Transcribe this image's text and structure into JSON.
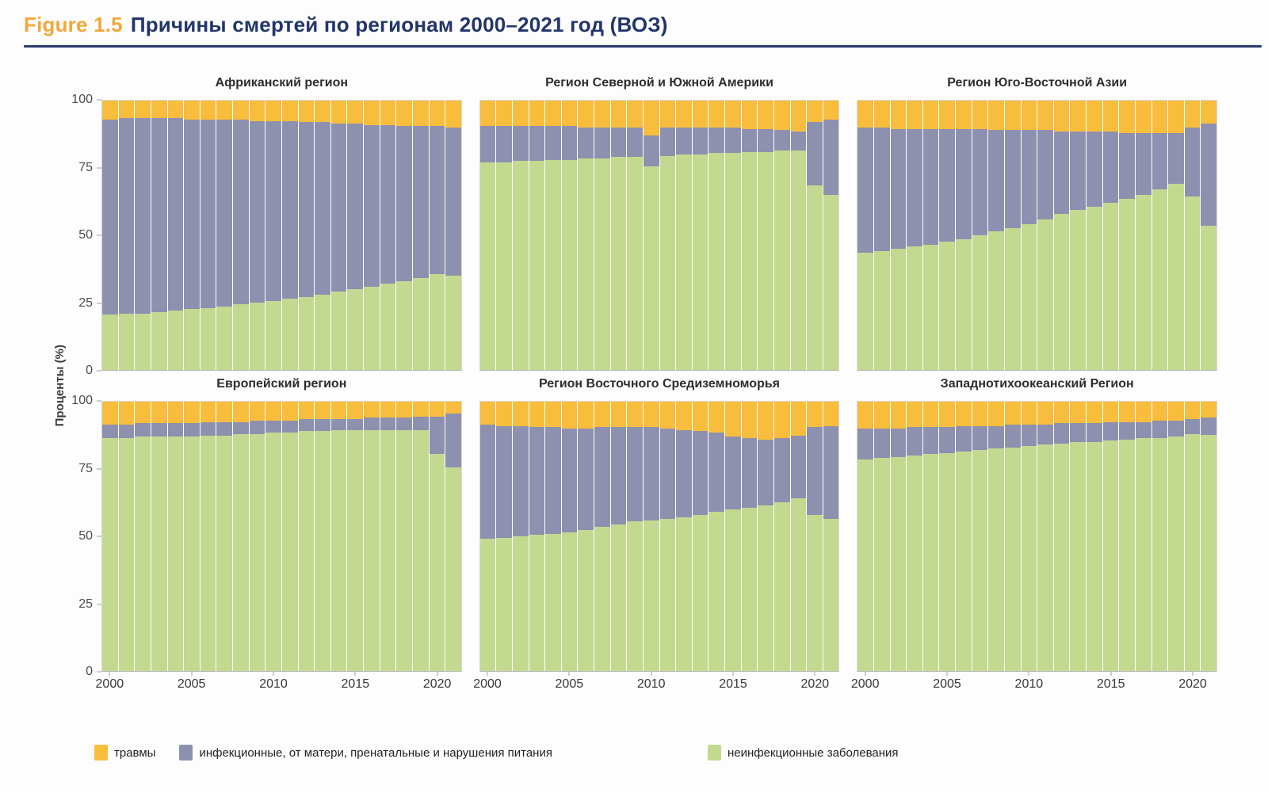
{
  "header": {
    "figure_label": "Figure 1.5",
    "title": "Причины смертей по регионам 2000–2021 год (ВОЗ)"
  },
  "legend": {
    "items": [
      {
        "key": "injuries",
        "label": "травмы",
        "color": "#f8bd3c"
      },
      {
        "key": "infectious",
        "label": "инфекционные, от матери, пренатальные и нарушения питания",
        "color": "#8d90ae"
      },
      {
        "key": "ncd",
        "label": "неинфекционные заболевания",
        "color": "#c3d98f"
      }
    ]
  },
  "chart_data": {
    "type": "bar",
    "stacked": true,
    "unit": "percent",
    "ylabel": "Проценты (%)",
    "ylim": [
      0,
      100
    ],
    "y_ticks": [
      0,
      25,
      50,
      75,
      100
    ],
    "x_ticks": [
      2000,
      2005,
      2010,
      2015,
      2020
    ],
    "years": [
      2000,
      2001,
      2002,
      2003,
      2004,
      2005,
      2006,
      2007,
      2008,
      2009,
      2010,
      2011,
      2012,
      2013,
      2014,
      2015,
      2016,
      2017,
      2018,
      2019,
      2020,
      2021
    ],
    "colors": {
      "injuries": "#f8bd3c",
      "infectious": "#8d90ae",
      "ncd": "#c3d98f"
    },
    "series_names": {
      "injuries": "травмы",
      "infectious": "инфекционные, от матери, пренатальные и нарушения питания",
      "ncd": "неинфекционные заболевания"
    },
    "panels": [
      {
        "title": "Африканский регион",
        "ncd": [
          20.5,
          21,
          21,
          21.5,
          22,
          22.5,
          23,
          23.5,
          24.5,
          25,
          25.5,
          26.5,
          27,
          28,
          29,
          30,
          31,
          32,
          33,
          34,
          35.5,
          35
        ],
        "infectious": [
          72.5,
          72.5,
          72.5,
          72,
          71.5,
          70.5,
          70,
          69.5,
          68.5,
          67.5,
          67,
          66,
          65,
          64,
          62.5,
          61.5,
          60,
          59,
          57.5,
          56.5,
          55,
          55
        ],
        "injuries": [
          7,
          6.5,
          6.5,
          6.5,
          6.5,
          7,
          7,
          7,
          7,
          7.5,
          7.5,
          7.5,
          8,
          8,
          8.5,
          8.5,
          9,
          9,
          9.5,
          9.5,
          9.5,
          10
        ]
      },
      {
        "title": "Регион Северной и Южной Америки",
        "ncd": [
          77,
          77,
          77.5,
          77.5,
          78,
          78,
          78.5,
          78.5,
          79,
          79,
          75.5,
          79.5,
          80,
          80,
          80.5,
          80.5,
          81,
          81,
          81.5,
          81.5,
          68.5,
          65
        ],
        "infectious": [
          13.5,
          13.5,
          13,
          13,
          12.5,
          12.5,
          11.5,
          11.5,
          11,
          11,
          11.5,
          10.5,
          10,
          10,
          9.5,
          9.5,
          8.5,
          8.5,
          7.5,
          7,
          23.5,
          28
        ],
        "injuries": [
          9.5,
          9.5,
          9.5,
          9.5,
          9.5,
          9.5,
          10,
          10,
          10,
          10,
          13,
          10,
          10,
          10,
          10,
          10,
          10.5,
          10.5,
          11,
          11.5,
          8,
          7
        ]
      },
      {
        "title": "Регион Юго-Восточной Азии",
        "ncd": [
          43.5,
          44,
          45,
          46,
          46.5,
          47.5,
          48.5,
          50,
          51.5,
          52.5,
          54,
          56,
          58,
          59.5,
          60.5,
          62,
          63.5,
          65,
          67,
          69,
          64.5,
          53.5
        ],
        "infectious": [
          46.5,
          46,
          44.5,
          43.5,
          43,
          42,
          41,
          39.5,
          37.5,
          36.5,
          35,
          33,
          30.5,
          29,
          28,
          26.5,
          24.5,
          23,
          21,
          19,
          25.5,
          38
        ],
        "injuries": [
          10,
          10,
          10.5,
          10.5,
          10.5,
          10.5,
          10.5,
          10.5,
          11,
          11,
          11,
          11,
          11.5,
          11.5,
          11.5,
          11.5,
          12,
          12,
          12,
          12,
          10,
          8.5
        ]
      },
      {
        "title": "Европейский регион",
        "ncd": [
          86.5,
          86.5,
          87,
          87,
          87,
          87,
          87.5,
          87.5,
          88,
          88,
          88.5,
          88.5,
          89,
          89,
          89.5,
          89.5,
          89.5,
          89.5,
          89.5,
          89.5,
          80.5,
          75.5
        ],
        "infectious": [
          5,
          5,
          5,
          5,
          5,
          5,
          5,
          5,
          4.5,
          5,
          4.5,
          4.5,
          4.5,
          4.5,
          4,
          4,
          4.5,
          4.5,
          4.5,
          5,
          14,
          20
        ],
        "injuries": [
          8.5,
          8.5,
          8,
          8,
          8,
          8,
          7.5,
          7.5,
          7.5,
          7,
          7,
          7,
          6.5,
          6.5,
          6.5,
          6.5,
          6,
          6,
          6,
          5.5,
          5.5,
          4.5
        ]
      },
      {
        "title": "Регион Восточного Средиземноморья",
        "ncd": [
          49,
          49.5,
          50,
          50.5,
          51,
          51.5,
          52.5,
          53.5,
          54.5,
          55.5,
          56,
          56.5,
          57,
          58,
          59,
          60,
          60.5,
          61.5,
          62.5,
          64,
          58,
          56.5
        ],
        "infectious": [
          42.5,
          41.5,
          41,
          40,
          39.5,
          38.5,
          37.5,
          37,
          36,
          35,
          34.5,
          33.5,
          32.5,
          31,
          29.5,
          27,
          26,
          24.5,
          24,
          23.5,
          32.5,
          34.5
        ],
        "injuries": [
          8.5,
          9,
          9,
          9.5,
          9.5,
          10,
          10,
          9.5,
          9.5,
          9.5,
          9.5,
          10,
          10.5,
          11,
          11.5,
          13,
          13.5,
          14,
          13.5,
          12.5,
          9.5,
          9
        ]
      },
      {
        "title": "Западнотихоокеанский Регион",
        "ncd": [
          78.5,
          79,
          79.5,
          80,
          80.5,
          81,
          81.5,
          82,
          82.5,
          83,
          83.5,
          84,
          84.5,
          85,
          85,
          85.5,
          86,
          86.5,
          86.5,
          87,
          88,
          87.5
        ],
        "infectious": [
          11.5,
          11,
          10.5,
          10.5,
          10,
          9.5,
          9.5,
          9,
          8.5,
          8.5,
          8,
          7.5,
          7.5,
          7,
          7,
          7,
          6.5,
          6,
          6.5,
          6,
          5.5,
          6.5
        ],
        "injuries": [
          10,
          10,
          10,
          9.5,
          9.5,
          9.5,
          9,
          9,
          9,
          8.5,
          8.5,
          8.5,
          8,
          8,
          8,
          7.5,
          7.5,
          7.5,
          7,
          7,
          6.5,
          6
        ]
      }
    ]
  }
}
